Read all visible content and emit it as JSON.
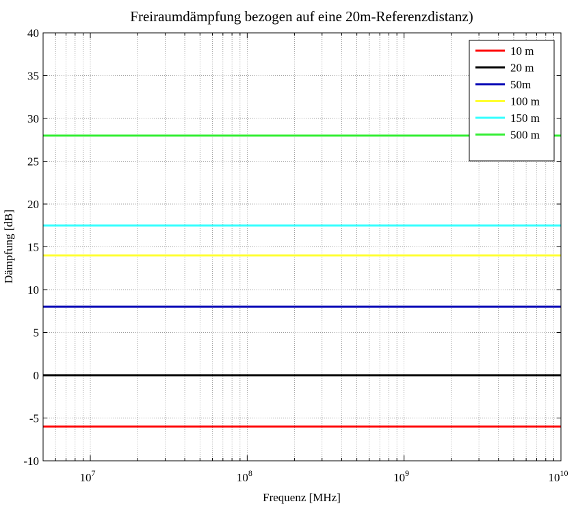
{
  "chart_data": {
    "type": "line",
    "title": "Freiraumdämpfung bezogen auf eine 20m-Referenzdistanz)",
    "xlabel": "Frequenz [MHz]",
    "ylabel": "Dämpfung [dB]",
    "xscale": "log",
    "xlim": [
      5000000,
      10000000000
    ],
    "ylim": [
      -10,
      40
    ],
    "grid": true,
    "legend_position": "top-right",
    "x_ticks": [
      {
        "value": 10000000,
        "base": "10",
        "exp": "7"
      },
      {
        "value": 100000000,
        "base": "10",
        "exp": "8"
      },
      {
        "value": 1000000000,
        "base": "10",
        "exp": "9"
      },
      {
        "value": 10000000000,
        "base": "10",
        "exp": "10"
      }
    ],
    "y_ticks": [
      -10,
      -5,
      0,
      5,
      10,
      15,
      20,
      25,
      30,
      35,
      40
    ],
    "x": [
      5000000,
      10000000000
    ],
    "series": [
      {
        "name": "10 m",
        "color": "#ff0000",
        "values": [
          -6,
          -6
        ]
      },
      {
        "name": "20 m",
        "color": "#000000",
        "values": [
          0,
          0
        ]
      },
      {
        "name": "50m",
        "color": "#0000b4",
        "values": [
          8,
          8
        ]
      },
      {
        "name": "100 m",
        "color": "#ffff33",
        "values": [
          14,
          14
        ]
      },
      {
        "name": "150 m",
        "color": "#33ffff",
        "values": [
          17.5,
          17.5
        ]
      },
      {
        "name": "500 m",
        "color": "#33ee33",
        "values": [
          28,
          28
        ]
      }
    ]
  }
}
